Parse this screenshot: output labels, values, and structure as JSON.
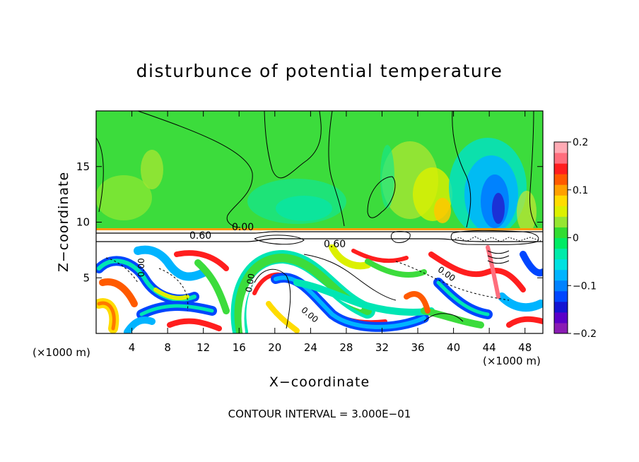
{
  "chart_data": {
    "type": "heatmap",
    "title": "disturbunce of potential temperature",
    "xlabel": "X−coordinate",
    "ylabel": "Z−coordinate",
    "x_unit": "(×1000 m)",
    "x_unit_right": "(×1000 m)",
    "xlim": [
      0,
      50
    ],
    "ylim": [
      0,
      20
    ],
    "x_ticks": [
      4,
      8,
      12,
      16,
      20,
      24,
      28,
      32,
      36,
      40,
      44,
      48
    ],
    "x_tick_labels": [
      "4",
      "8",
      "12",
      "16",
      "20",
      "24",
      "28",
      "32",
      "36",
      "40",
      "44",
      "48"
    ],
    "y_ticks": [
      5,
      10,
      15
    ],
    "y_tick_labels": [
      "5",
      "10",
      "15"
    ],
    "colorbar": {
      "min": -0.2,
      "max": 0.2,
      "ticks": [
        0.2,
        0.1,
        0,
        -0.1,
        -0.2
      ],
      "tick_labels": [
        "0.2",
        "0.1",
        "0",
        "−0.1",
        "−0.2"
      ],
      "colors": [
        "#8a1cb4",
        "#5a00c8",
        "#1414d2",
        "#0046ff",
        "#0082ff",
        "#00b4ff",
        "#00e1e1",
        "#00ebaa",
        "#00eb64",
        "#32dc32",
        "#96e632",
        "#dcf000",
        "#ffdc00",
        "#ffa000",
        "#ff5a00",
        "#ff1e1e",
        "#ff6e7d",
        "#ffaab4"
      ]
    },
    "contour_labels": [
      "0.00",
      "0.60",
      "0.60",
      "0.00",
      "0.00",
      "0.00",
      "0.00"
    ],
    "contour_interval_text": "CONTOUR INTERVAL =  3.000E−01"
  }
}
